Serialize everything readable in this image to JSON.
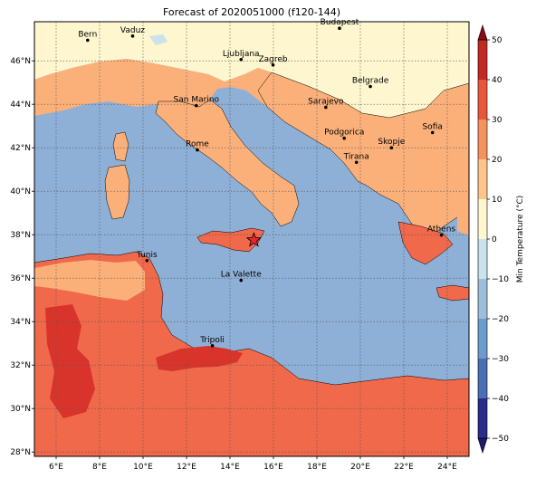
{
  "title": "Forecast of 2020051000 (f120-144)",
  "extent": {
    "lon_min": 5,
    "lon_max": 25,
    "lat_min": 27.8,
    "lat_max": 47.8
  },
  "x_ticks": [
    6,
    8,
    10,
    12,
    14,
    16,
    18,
    20,
    22,
    24
  ],
  "x_tick_labels": [
    "6°E",
    "8°E",
    "10°E",
    "12°E",
    "14°E",
    "16°E",
    "18°E",
    "20°E",
    "22°E",
    "24°E"
  ],
  "y_ticks": [
    28,
    30,
    32,
    34,
    36,
    38,
    40,
    42,
    44,
    46
  ],
  "y_tick_labels": [
    "28°N",
    "30°N",
    "32°N",
    "34°N",
    "36°N",
    "38°N",
    "40°N",
    "42°N",
    "44°N",
    "46°N"
  ],
  "grid": true,
  "cities": [
    {
      "name": "Bern",
      "lon": 7.45,
      "lat": 46.95
    },
    {
      "name": "Vaduz",
      "lon": 9.52,
      "lat": 47.14
    },
    {
      "name": "Budapest",
      "lon": 19.04,
      "lat": 47.5
    },
    {
      "name": "Ljubljana",
      "lon": 14.51,
      "lat": 46.06
    },
    {
      "name": "Zagreb",
      "lon": 15.98,
      "lat": 45.81
    },
    {
      "name": "Belgrade",
      "lon": 20.46,
      "lat": 44.82
    },
    {
      "name": "San Marino",
      "lon": 12.45,
      "lat": 43.94
    },
    {
      "name": "Sarajevo",
      "lon": 18.41,
      "lat": 43.86
    },
    {
      "name": "Sofia",
      "lon": 23.32,
      "lat": 42.7
    },
    {
      "name": "Rome",
      "lon": 12.5,
      "lat": 41.9
    },
    {
      "name": "Podgorica",
      "lon": 19.26,
      "lat": 42.44
    },
    {
      "name": "Skopje",
      "lon": 21.43,
      "lat": 42.0
    },
    {
      "name": "Tirana",
      "lon": 19.82,
      "lat": 41.33
    },
    {
      "name": "Athens",
      "lon": 23.73,
      "lat": 37.98
    },
    {
      "name": "Tunis",
      "lon": 10.18,
      "lat": 36.81
    },
    {
      "name": "La Valette",
      "lon": 14.51,
      "lat": 35.9
    },
    {
      "name": "Tripoli",
      "lon": 13.19,
      "lat": 32.89
    }
  ],
  "marker": {
    "symbol": "star",
    "lon": 15.1,
    "lat": 37.75,
    "color": "#e8252a"
  },
  "colorbar": {
    "label": "Min Temperature (°C)",
    "min": -50,
    "max": 50,
    "step": 10,
    "tick_labels": [
      "−50",
      "−40",
      "−30",
      "−20",
      "−10",
      "0",
      "10",
      "20",
      "30",
      "40",
      "50"
    ],
    "colors": [
      "#2b2b8a",
      "#4a6fb5",
      "#6d9bcb",
      "#9dbedb",
      "#c9e2ec",
      "#fdf6cf",
      "#fbc58c",
      "#f5935f",
      "#e8573a",
      "#c12a24"
    ],
    "extend": "both"
  },
  "fill_colors": {
    "sea": "#8eb0d6",
    "cold_land": "#fdf6cf",
    "mild": "#fbb07a",
    "warm": "#f0694a",
    "hot": "#d9342b",
    "lake": "#c9e2ec"
  }
}
